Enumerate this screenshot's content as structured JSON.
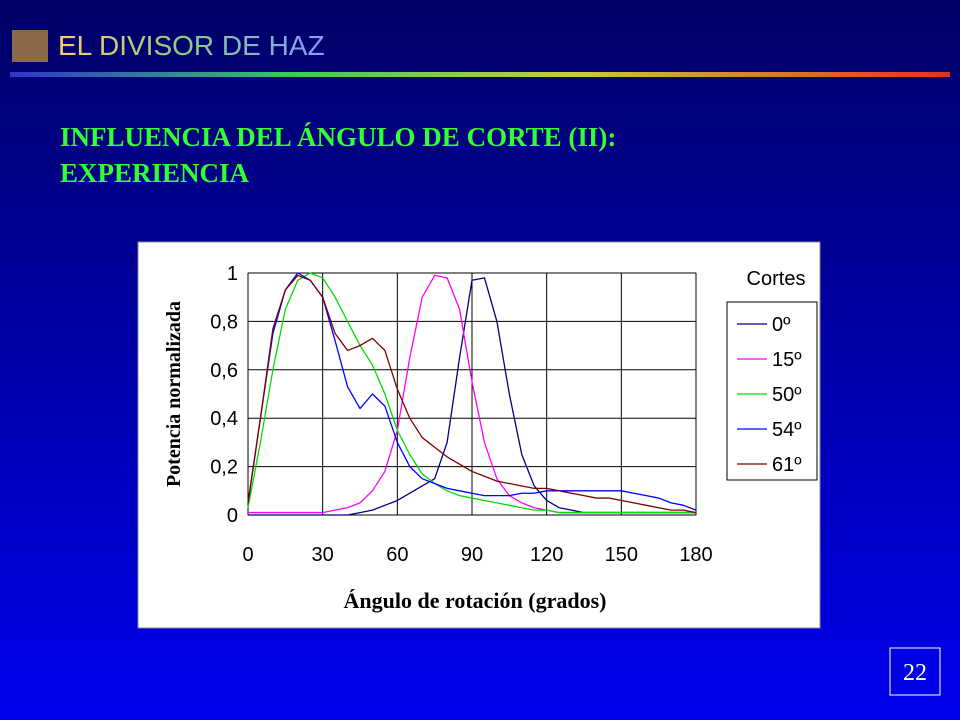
{
  "slide": {
    "header": "EL DIVISOR DE HAZ",
    "heading": [
      "INFLUENCIA DEL ÁNGULO DE CORTE (II):",
      "EXPERIENCIA"
    ],
    "page_number": "22"
  },
  "chart_data": {
    "type": "line",
    "x_label": "Ángulo de rotación (grados)",
    "y_label": "Potencia normalizada",
    "legend_title": "Cortes",
    "legend": "right",
    "grid": true,
    "x": [
      0,
      5,
      10,
      15,
      20,
      25,
      30,
      35,
      40,
      45,
      50,
      55,
      60,
      65,
      70,
      75,
      80,
      85,
      90,
      95,
      100,
      105,
      110,
      115,
      120,
      125,
      130,
      135,
      140,
      145,
      150,
      155,
      160,
      165,
      170,
      175,
      180
    ],
    "xlim": [
      0,
      180
    ],
    "xticks": [
      0,
      30,
      60,
      90,
      120,
      150,
      180
    ],
    "ylim": [
      0,
      1
    ],
    "yticks": [
      0,
      {
        "value": 0.2,
        "label": "0,2"
      },
      {
        "value": 0.4,
        "label": "0,4"
      },
      {
        "value": 0.6,
        "label": "0,6"
      },
      {
        "value": 0.8,
        "label": "0,8"
      },
      1
    ],
    "series": [
      {
        "name": "0º",
        "color": "#000080",
        "values": [
          0,
          0,
          0,
          0,
          0,
          0,
          0,
          0,
          0,
          0.01,
          0.02,
          0.04,
          0.06,
          0.09,
          0.12,
          0.15,
          0.3,
          0.65,
          0.97,
          0.98,
          0.8,
          0.5,
          0.25,
          0.12,
          0.06,
          0.03,
          0.02,
          0.01,
          0.01,
          0.01,
          0.01,
          0.01,
          0.01,
          0.01,
          0.01,
          0.01,
          0.01
        ]
      },
      {
        "name": "15º",
        "color": "#ff00ff",
        "values": [
          0.01,
          0.01,
          0.01,
          0.01,
          0.01,
          0.01,
          0.01,
          0.02,
          0.03,
          0.05,
          0.1,
          0.18,
          0.35,
          0.65,
          0.9,
          0.99,
          0.98,
          0.85,
          0.55,
          0.3,
          0.15,
          0.08,
          0.05,
          0.03,
          0.02,
          0.01,
          0.01,
          0.01,
          0.01,
          0.01,
          0.01,
          0.01,
          0.01,
          0.01,
          0.01,
          0.01,
          0.01
        ]
      },
      {
        "name": "50º",
        "color": "#00dd00",
        "values": [
          0.03,
          0.3,
          0.6,
          0.85,
          0.97,
          1,
          0.98,
          0.9,
          0.8,
          0.7,
          0.62,
          0.5,
          0.35,
          0.25,
          0.17,
          0.13,
          0.1,
          0.08,
          0.07,
          0.06,
          0.05,
          0.04,
          0.03,
          0.02,
          0.02,
          0.01,
          0.01,
          0.01,
          0.01,
          0.01,
          0.01,
          0.01,
          0.01,
          0.01,
          0.01,
          0.01,
          0.01
        ]
      },
      {
        "name": "54º",
        "color": "#0000ff",
        "values": [
          0.05,
          0.4,
          0.75,
          0.93,
          1,
          0.97,
          0.9,
          0.72,
          0.53,
          0.44,
          0.5,
          0.45,
          0.3,
          0.2,
          0.15,
          0.13,
          0.11,
          0.1,
          0.09,
          0.08,
          0.08,
          0.08,
          0.09,
          0.09,
          0.1,
          0.1,
          0.1,
          0.1,
          0.1,
          0.1,
          0.1,
          0.09,
          0.08,
          0.07,
          0.05,
          0.04,
          0.02
        ]
      },
      {
        "name": "61º",
        "color": "#800000",
        "values": [
          0.05,
          0.4,
          0.77,
          0.93,
          0.99,
          0.97,
          0.9,
          0.75,
          0.68,
          0.7,
          0.73,
          0.68,
          0.52,
          0.4,
          0.32,
          0.28,
          0.24,
          0.21,
          0.18,
          0.16,
          0.14,
          0.13,
          0.12,
          0.11,
          0.11,
          0.1,
          0.09,
          0.08,
          0.07,
          0.07,
          0.06,
          0.05,
          0.04,
          0.03,
          0.02,
          0.02,
          0.01
        ]
      }
    ]
  }
}
